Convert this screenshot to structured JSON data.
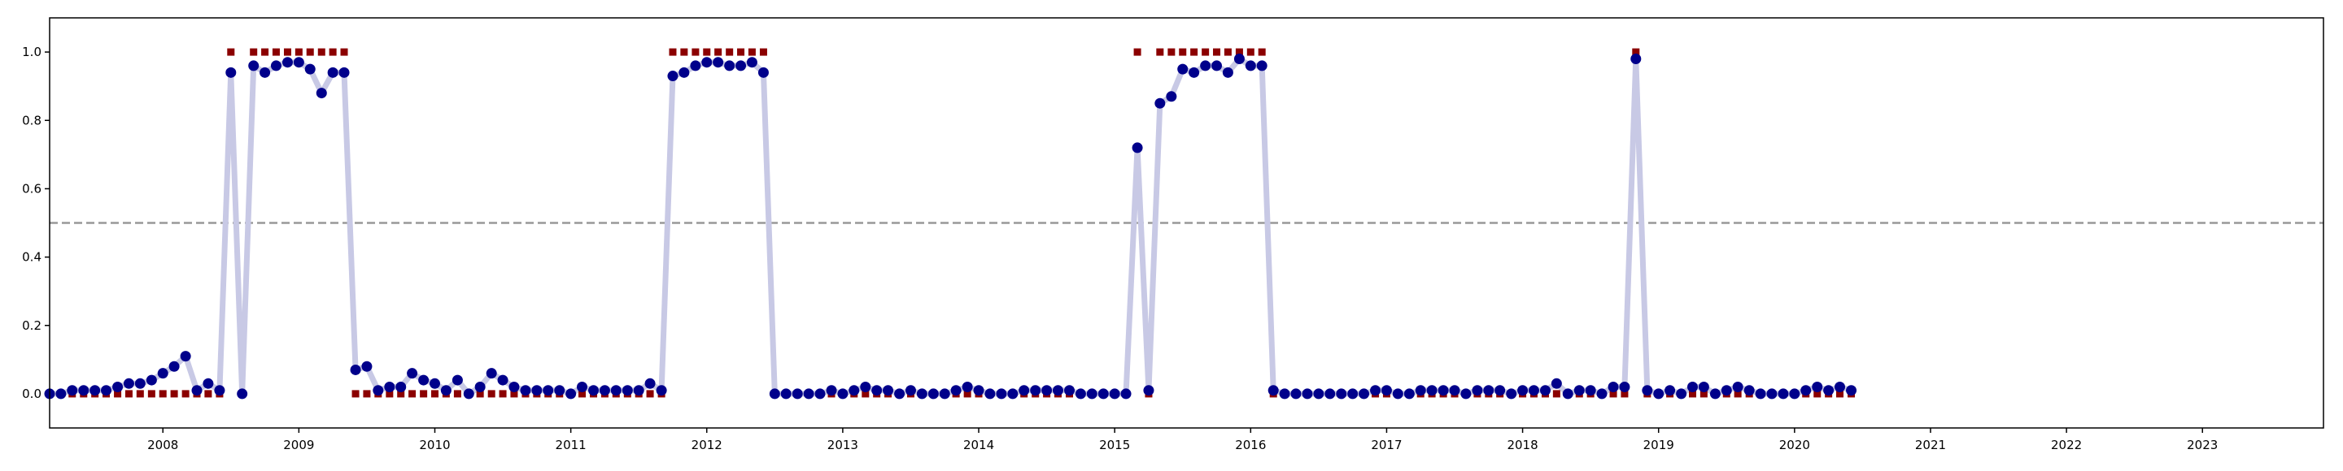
{
  "chart_data": {
    "type": "line",
    "x": [
      2007.167,
      2007.25,
      2007.333,
      2007.417,
      2007.5,
      2007.583,
      2007.667,
      2007.75,
      2007.833,
      2007.917,
      2008,
      2008.083,
      2008.167,
      2008.25,
      2008.333,
      2008.417,
      2008.5,
      2008.583,
      2008.667,
      2008.75,
      2008.833,
      2008.917,
      2009,
      2009.083,
      2009.167,
      2009.25,
      2009.333,
      2009.417,
      2009.5,
      2009.583,
      2009.667,
      2009.75,
      2009.833,
      2009.917,
      2010,
      2010.083,
      2010.167,
      2010.25,
      2010.333,
      2010.417,
      2010.5,
      2010.583,
      2010.667,
      2010.75,
      2010.833,
      2010.917,
      2011,
      2011.083,
      2011.167,
      2011.25,
      2011.333,
      2011.417,
      2011.5,
      2011.583,
      2011.667,
      2011.75,
      2011.833,
      2011.917,
      2012,
      2012.083,
      2012.167,
      2012.25,
      2012.333,
      2012.417,
      2012.5,
      2012.583,
      2012.667,
      2012.75,
      2012.833,
      2012.917,
      2013,
      2013.083,
      2013.167,
      2013.25,
      2013.333,
      2013.417,
      2013.5,
      2013.583,
      2013.667,
      2013.75,
      2013.833,
      2013.917,
      2014,
      2014.083,
      2014.167,
      2014.25,
      2014.333,
      2014.417,
      2014.5,
      2014.583,
      2014.667,
      2014.75,
      2014.833,
      2014.917,
      2015,
      2015.083,
      2015.167,
      2015.25,
      2015.333,
      2015.417,
      2015.5,
      2015.583,
      2015.667,
      2015.75,
      2015.833,
      2015.917,
      2016,
      2016.083,
      2016.167,
      2016.25,
      2016.333,
      2016.417,
      2016.5,
      2016.583,
      2016.667,
      2016.75,
      2016.833,
      2016.917,
      2017,
      2017.083,
      2017.167,
      2017.25,
      2017.333,
      2017.417,
      2017.5,
      2017.583,
      2017.667,
      2017.75,
      2017.833,
      2017.917,
      2018,
      2018.083,
      2018.167,
      2018.25,
      2018.333,
      2018.417,
      2018.5,
      2018.583,
      2018.667,
      2018.75,
      2018.833,
      2018.917,
      2019,
      2019.083,
      2019.167,
      2019.25,
      2019.333,
      2019.417,
      2019.5,
      2019.583,
      2019.667,
      2019.75,
      2019.833,
      2019.917,
      2020,
      2020.083,
      2020.167,
      2020.25,
      2020.333,
      2020.417
    ],
    "series": [
      {
        "color": "#00008b",
        "line_color": "#c8c9e5",
        "marker": "circle",
        "values": [
          0.0,
          0.0,
          0.01,
          0.01,
          0.01,
          0.01,
          0.02,
          0.03,
          0.03,
          0.04,
          0.06,
          0.08,
          0.11,
          0.01,
          0.03,
          0.01,
          0.94,
          0.0,
          0.96,
          0.94,
          0.96,
          0.97,
          0.97,
          0.95,
          0.88,
          0.94,
          0.94,
          0.07,
          0.08,
          0.01,
          0.02,
          0.02,
          0.06,
          0.04,
          0.03,
          0.01,
          0.04,
          0.0,
          0.02,
          0.06,
          0.04,
          0.02,
          0.01,
          0.01,
          0.01,
          0.01,
          0.0,
          0.02,
          0.01,
          0.01,
          0.01,
          0.01,
          0.01,
          0.03,
          0.01,
          0.93,
          0.94,
          0.96,
          0.97,
          0.97,
          0.96,
          0.96,
          0.97,
          0.94,
          0.0,
          0.0,
          0.0,
          0.0,
          0.0,
          0.01,
          0.0,
          0.01,
          0.02,
          0.01,
          0.01,
          0.0,
          0.01,
          0.0,
          0.0,
          0.0,
          0.01,
          0.02,
          0.01,
          0.0,
          0.0,
          0.0,
          0.01,
          0.01,
          0.01,
          0.01,
          0.01,
          0.0,
          0.0,
          0.0,
          0.0,
          0.0,
          0.72,
          0.01,
          0.85,
          0.87,
          0.95,
          0.94,
          0.96,
          0.96,
          0.94,
          0.98,
          0.96,
          0.96,
          0.01,
          0.0,
          0.0,
          0.0,
          0.0,
          0.0,
          0.0,
          0.0,
          0.0,
          0.01,
          0.01,
          0.0,
          0.0,
          0.01,
          0.01,
          0.01,
          0.01,
          0.0,
          0.01,
          0.01,
          0.01,
          0.0,
          0.01,
          0.01,
          0.01,
          0.03,
          0.0,
          0.01,
          0.01,
          0.0,
          0.02,
          0.02,
          0.98,
          0.01,
          0.0,
          0.01,
          0.0,
          0.02,
          0.02,
          0.0,
          0.01,
          0.02,
          0.01,
          0.0,
          0.0,
          0.0,
          0.0,
          0.01,
          0.02,
          0.01,
          0.02,
          0.01
        ]
      },
      {
        "color": "#8b0000",
        "marker": "square",
        "values": [
          0,
          0,
          0,
          0,
          0,
          0,
          0,
          0,
          0,
          0,
          0,
          0,
          0,
          0,
          0,
          0,
          1,
          0,
          1,
          1,
          1,
          1,
          1,
          1,
          1,
          1,
          1,
          0,
          0,
          0,
          0,
          0,
          0,
          0,
          0,
          0,
          0,
          0,
          0,
          0,
          0,
          0,
          0,
          0,
          0,
          0,
          0,
          0,
          0,
          0,
          0,
          0,
          0,
          0,
          0,
          1,
          1,
          1,
          1,
          1,
          1,
          1,
          1,
          1,
          0,
          0,
          0,
          0,
          0,
          0,
          0,
          0,
          0,
          0,
          0,
          0,
          0,
          0,
          0,
          0,
          0,
          0,
          0,
          0,
          0,
          0,
          0,
          0,
          0,
          0,
          0,
          0,
          0,
          0,
          0,
          0,
          1,
          0,
          1,
          1,
          1,
          1,
          1,
          1,
          1,
          1,
          1,
          1,
          0,
          0,
          0,
          0,
          0,
          0,
          0,
          0,
          0,
          0,
          0,
          0,
          0,
          0,
          0,
          0,
          0,
          0,
          0,
          0,
          0,
          0,
          0,
          0,
          0,
          0,
          0,
          0,
          0,
          0,
          0,
          0,
          1,
          0,
          0,
          0,
          0,
          0,
          0,
          0,
          0,
          0,
          0,
          0,
          0,
          0,
          0,
          0,
          0,
          0,
          0,
          0
        ]
      }
    ],
    "hline": 0.5,
    "hline_color": "#999999",
    "xlim": [
      2007.167,
      2023.89
    ],
    "ylim": [
      -0.1,
      1.1
    ],
    "xticks": [
      2008,
      2009,
      2010,
      2011,
      2012,
      2013,
      2014,
      2015,
      2016,
      2017,
      2018,
      2019,
      2020,
      2021,
      2022,
      2023
    ],
    "yticks": [
      {
        "value": 0,
        "label": "0.0"
      },
      {
        "value": 0.2,
        "label": "0.2"
      },
      {
        "value": 0.4,
        "label": "0.4"
      },
      {
        "value": 0.6,
        "label": "0.6"
      },
      {
        "value": 0.8,
        "label": "0.8"
      },
      {
        "value": 1,
        "label": "1.0"
      }
    ]
  }
}
